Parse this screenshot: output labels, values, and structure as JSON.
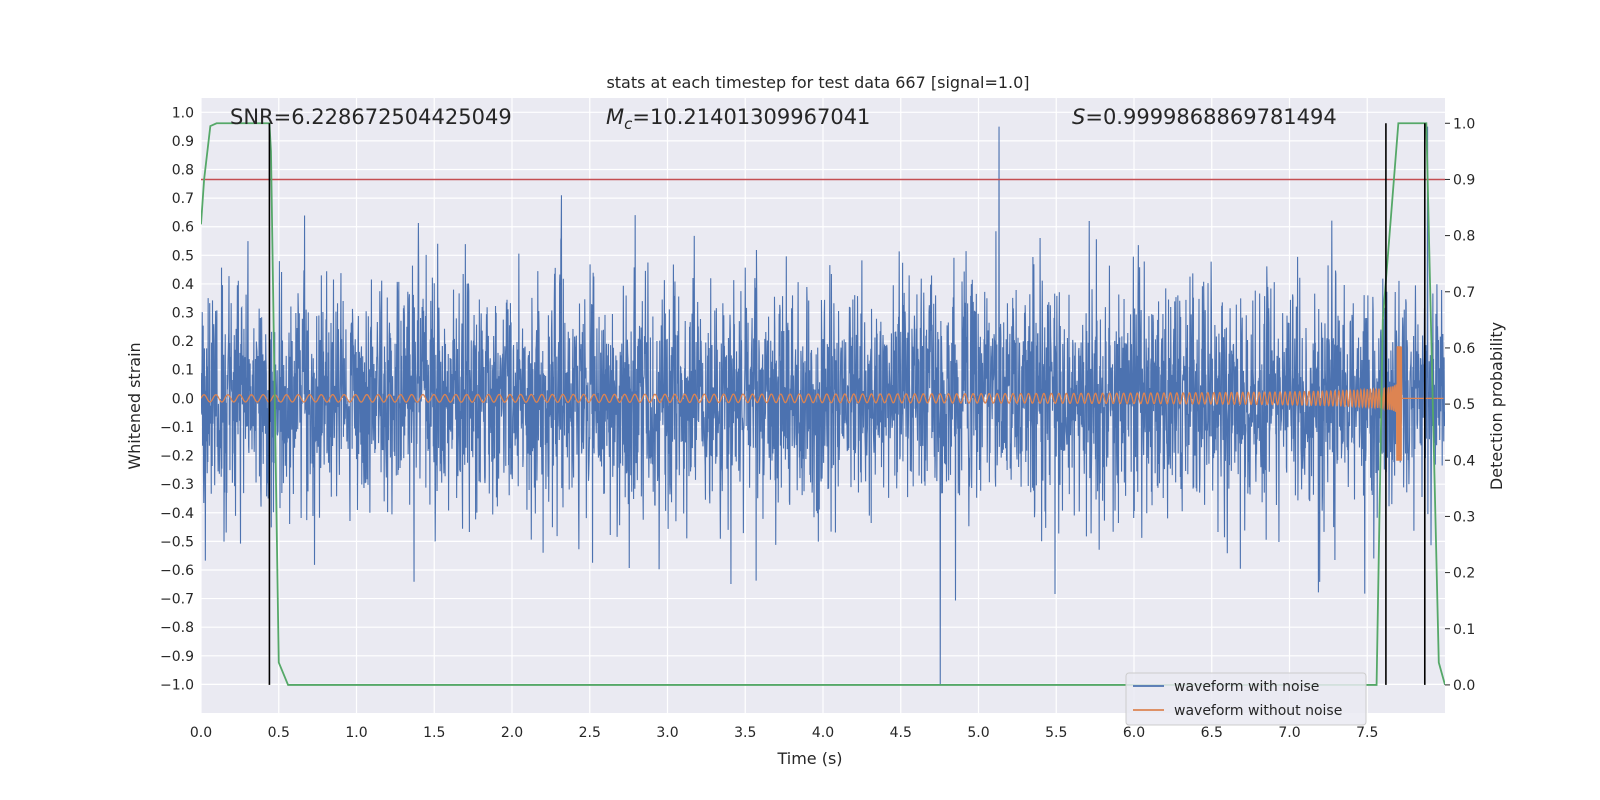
{
  "chart_data": {
    "type": "line",
    "title": "stats at each timestep for test data 667 [signal=1.0]",
    "xlabel": "Time (s)",
    "ylabel": "Whitened strain",
    "y2label": "Detection probability",
    "xlim": [
      0,
      8
    ],
    "ylim": [
      -1.1,
      1.05
    ],
    "y2lim": [
      -0.05,
      1.045
    ],
    "xticks": [
      0.0,
      0.5,
      1.0,
      1.5,
      2.0,
      2.5,
      3.0,
      3.5,
      4.0,
      4.5,
      5.0,
      5.5,
      6.0,
      6.5,
      7.0,
      7.5
    ],
    "xtick_labels": [
      "0.0",
      "0.5",
      "1.0",
      "1.5",
      "2.0",
      "2.5",
      "3.0",
      "3.5",
      "4.0",
      "4.5",
      "5.0",
      "5.5",
      "6.0",
      "6.5",
      "7.0",
      "7.5"
    ],
    "yticks": [
      1.0,
      0.9,
      0.8,
      0.7,
      0.6,
      0.5,
      0.4,
      0.3,
      0.2,
      0.1,
      0.0,
      -0.1,
      -0.2,
      -0.3,
      -0.4,
      -0.5,
      -0.6,
      -0.7,
      -0.8,
      -0.9,
      -1.0
    ],
    "ytick_labels": [
      "1.0",
      "0.9",
      "0.8",
      "0.7",
      "0.6",
      "0.5",
      "0.4",
      "0.3",
      "0.2",
      "0.1",
      "0.0",
      "−0.1",
      "−0.2",
      "−0.3",
      "−0.4",
      "−0.5",
      "−0.6",
      "−0.7",
      "−0.8",
      "−0.9",
      "−1.0"
    ],
    "y2ticks": [
      1.0,
      0.9,
      0.8,
      0.7,
      0.6,
      0.5,
      0.4,
      0.3,
      0.2,
      0.1,
      0.0
    ],
    "y2tick_labels": [
      "1.0",
      "0.9",
      "0.8",
      "0.7",
      "0.6",
      "0.5",
      "0.4",
      "0.3",
      "0.2",
      "0.1",
      "0.0"
    ],
    "grid": true,
    "legend": "lower-right",
    "annotations": {
      "snr": "SNR=6.228672504425049",
      "mc_symbol": "M",
      "mc_sub": "c",
      "mc_value": "=10.21401309967041",
      "s_symbol": "S",
      "s_value": "=0.9999868869781494"
    },
    "series": [
      {
        "name": "waveform with noise",
        "axis": "left",
        "color": "#4c72b0",
        "noise_std": 0.17,
        "x_range": [
          0,
          8
        ]
      },
      {
        "name": "waveform without noise",
        "axis": "left",
        "color": "#dd8452",
        "chirp_end_time": 7.72,
        "amplitude_start": 0.012,
        "amplitude_peak": 0.2,
        "amplitude_trough": -0.24
      }
    ],
    "detection_probability": {
      "axis": "right",
      "color": "#55a868",
      "t": [
        0.0,
        0.02,
        0.06,
        0.1,
        0.44,
        0.45,
        0.5,
        0.56,
        7.56,
        7.6,
        7.7,
        7.88,
        7.96,
        8.0
      ],
      "p": [
        0.82,
        0.9,
        0.995,
        1.0,
        1.0,
        0.95,
        0.04,
        0.0,
        0.0,
        0.65,
        1.0,
        1.0,
        0.04,
        0.0
      ]
    },
    "threshold": {
      "axis": "right",
      "value": 0.9,
      "color": "#c44e52"
    },
    "vertical_lines": {
      "color": "#000000",
      "x": [
        0.44,
        7.62,
        7.87
      ]
    }
  }
}
